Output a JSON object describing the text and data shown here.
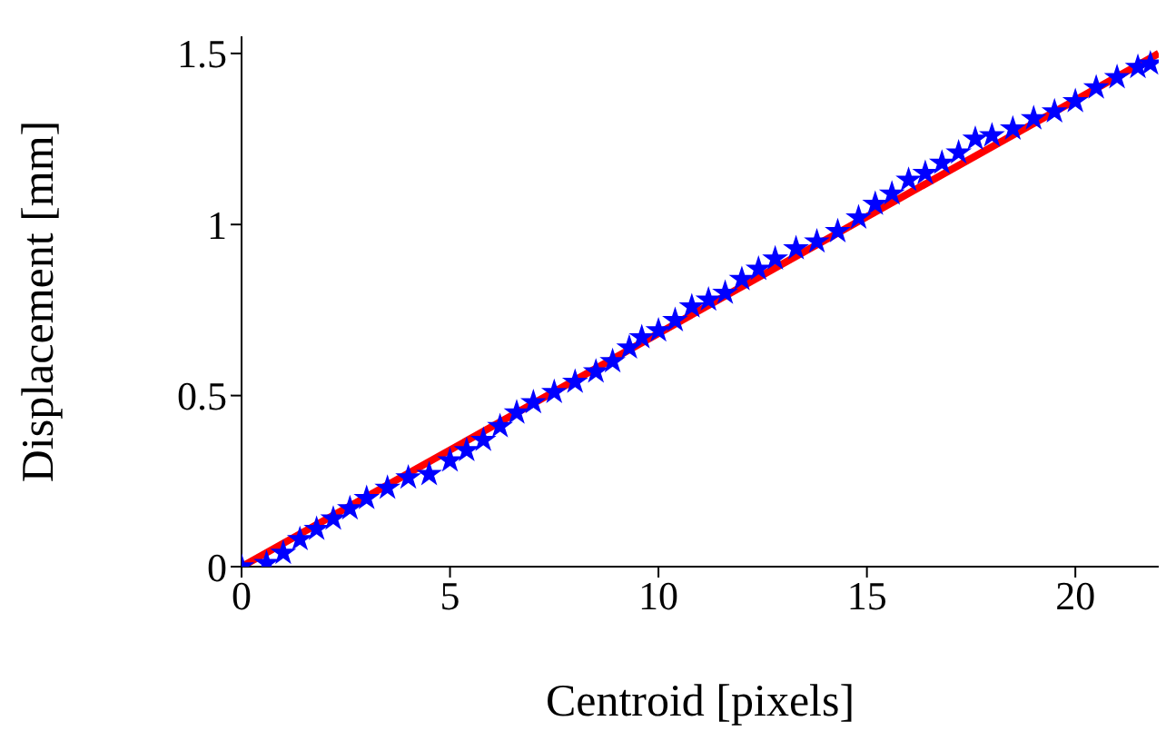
{
  "chart_data": {
    "type": "scatter",
    "xlabel": "Centroid [pixels]",
    "ylabel": "Displacement [mm]",
    "xlim": [
      0,
      22
    ],
    "ylim": [
      0,
      1.55
    ],
    "xticks": [
      0,
      5,
      10,
      15,
      20
    ],
    "yticks": [
      0,
      0.5,
      1,
      1.5
    ],
    "grid": false,
    "x": [
      0,
      0.6,
      1.0,
      1.4,
      1.8,
      2.2,
      2.6,
      3.0,
      3.5,
      4.0,
      4.5,
      5.0,
      5.4,
      5.8,
      6.2,
      6.6,
      7.0,
      7.5,
      8.0,
      8.5,
      8.9,
      9.3,
      9.6,
      10.0,
      10.4,
      10.8,
      11.2,
      11.6,
      12.0,
      12.4,
      12.8,
      13.3,
      13.8,
      14.3,
      14.8,
      15.2,
      15.6,
      16.0,
      16.4,
      16.8,
      17.2,
      17.6,
      18.0,
      18.5,
      19.0,
      19.5,
      20.0,
      20.5,
      21.0,
      21.5,
      21.8
    ],
    "series": [
      {
        "type": "line",
        "color": "#ff0000",
        "x": [
          0,
          22
        ],
        "values": [
          0,
          1.5
        ]
      },
      {
        "color": "#0000ff",
        "marker": "star",
        "values": [
          0,
          0.01,
          0.04,
          0.08,
          0.11,
          0.14,
          0.17,
          0.2,
          0.23,
          0.26,
          0.27,
          0.31,
          0.34,
          0.37,
          0.41,
          0.45,
          0.48,
          0.51,
          0.54,
          0.57,
          0.6,
          0.64,
          0.67,
          0.69,
          0.72,
          0.76,
          0.78,
          0.8,
          0.84,
          0.87,
          0.9,
          0.93,
          0.95,
          0.98,
          1.02,
          1.06,
          1.09,
          1.13,
          1.15,
          1.18,
          1.21,
          1.25,
          1.26,
          1.28,
          1.31,
          1.33,
          1.36,
          1.4,
          1.43,
          1.46,
          1.47
        ]
      }
    ]
  }
}
